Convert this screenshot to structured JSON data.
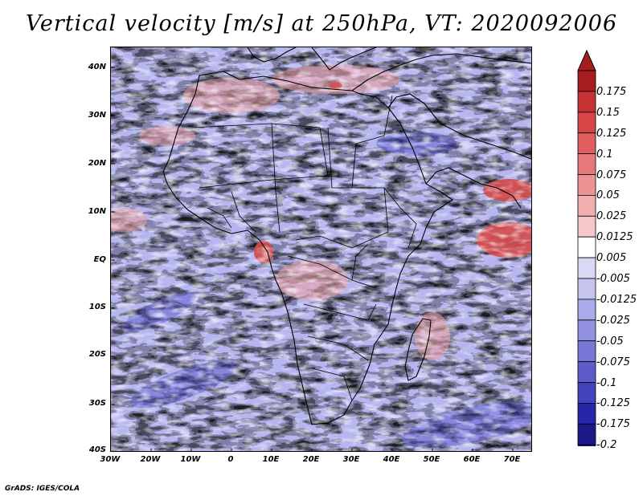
{
  "title": "Vertical velocity [m/s] at 250hPa, VT: 2020092006",
  "credit": "GrADS: IGES/COLA",
  "map": {
    "lon_range": [
      -30,
      75
    ],
    "lat_range": [
      -40,
      45
    ],
    "lat_labels": [
      "40N",
      "30N",
      "20N",
      "10N",
      "EQ",
      "10S",
      "20S",
      "30S",
      "40S"
    ],
    "lon_labels": [
      "30W",
      "20W",
      "10W",
      "0",
      "10E",
      "20E",
      "30E",
      "40E",
      "50E",
      "60E",
      "70E"
    ]
  },
  "colorbar": {
    "labels": [
      "0.175",
      "0.15",
      "0.125",
      "0.1",
      "0.075",
      "0.05",
      "0.025",
      "0.0125",
      "0.005",
      "-0.005",
      "-0.0125",
      "-0.025",
      "-0.05",
      "-0.075",
      "-0.1",
      "-0.125",
      "-0.175",
      "-0.2"
    ],
    "colors": [
      "#a51d1d",
      "#c43232",
      "#d64646",
      "#e05e5e",
      "#e67979",
      "#ec9494",
      "#f1afaf",
      "#f6c9c9",
      "#ffffff",
      "#d9d9f3",
      "#c4c4ee",
      "#aaaaea",
      "#9292e0",
      "#7878d6",
      "#5c5cca",
      "#4343bd",
      "#2626a8",
      "#1a1a8a"
    ]
  }
}
